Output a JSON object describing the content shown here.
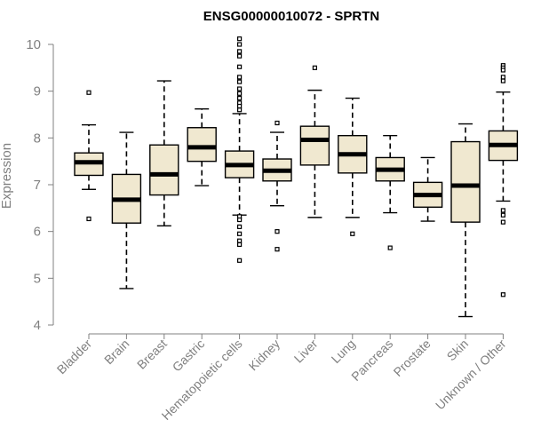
{
  "chart_data": {
    "type": "box",
    "title": "ENSG00000010072 - SPRTN",
    "xlabel": "",
    "ylabel": "Expression",
    "ylim": [
      4,
      10
    ],
    "yticks": [
      4,
      5,
      6,
      7,
      8,
      9,
      10
    ],
    "grid": false,
    "legend": "none",
    "box_fill": "#f0e8d0",
    "median_color": "#000000",
    "categories": [
      "Bladder",
      "Brain",
      "Breast",
      "Gastric",
      "Hematopoietic cells",
      "Kidney",
      "Liver",
      "Lung",
      "Pancreas",
      "Prostate",
      "Skin",
      "Unknown / Other"
    ],
    "boxes": [
      {
        "min": 6.9,
        "q1": 7.2,
        "median": 7.48,
        "q3": 7.68,
        "max": 8.28,
        "outliers": [
          8.97,
          6.27
        ]
      },
      {
        "min": 4.78,
        "q1": 6.18,
        "median": 6.68,
        "q3": 7.22,
        "max": 8.12,
        "outliers": []
      },
      {
        "min": 6.12,
        "q1": 6.78,
        "median": 7.22,
        "q3": 7.85,
        "max": 9.22,
        "outliers": []
      },
      {
        "min": 6.98,
        "q1": 7.5,
        "median": 7.8,
        "q3": 8.22,
        "max": 8.62,
        "outliers": []
      },
      {
        "min": 6.35,
        "q1": 7.15,
        "median": 7.42,
        "q3": 7.72,
        "max": 8.52,
        "outliers": [
          10.12,
          10.0,
          9.85,
          9.75,
          9.52,
          9.3,
          9.2,
          9.05,
          8.95,
          8.85,
          8.75,
          8.68,
          8.6,
          6.32,
          6.25,
          6.1,
          5.95,
          5.8,
          5.72,
          5.38
        ]
      },
      {
        "min": 6.55,
        "q1": 7.08,
        "median": 7.3,
        "q3": 7.55,
        "max": 8.12,
        "outliers": [
          8.32,
          6.0,
          5.62
        ]
      },
      {
        "min": 6.3,
        "q1": 7.42,
        "median": 7.96,
        "q3": 8.25,
        "max": 9.02,
        "outliers": [
          9.5
        ]
      },
      {
        "min": 6.3,
        "q1": 7.25,
        "median": 7.65,
        "q3": 8.05,
        "max": 8.85,
        "outliers": [
          5.95
        ]
      },
      {
        "min": 6.4,
        "q1": 7.08,
        "median": 7.32,
        "q3": 7.58,
        "max": 8.05,
        "outliers": [
          5.65
        ]
      },
      {
        "min": 6.22,
        "q1": 6.52,
        "median": 6.78,
        "q3": 7.05,
        "max": 7.58,
        "outliers": []
      },
      {
        "min": 4.18,
        "q1": 6.2,
        "median": 6.98,
        "q3": 7.92,
        "max": 8.3,
        "outliers": []
      },
      {
        "min": 6.65,
        "q1": 7.52,
        "median": 7.85,
        "q3": 8.15,
        "max": 8.98,
        "outliers": [
          9.55,
          9.5,
          9.45,
          9.3,
          9.22,
          6.45,
          6.35,
          6.2,
          4.65
        ]
      }
    ]
  }
}
